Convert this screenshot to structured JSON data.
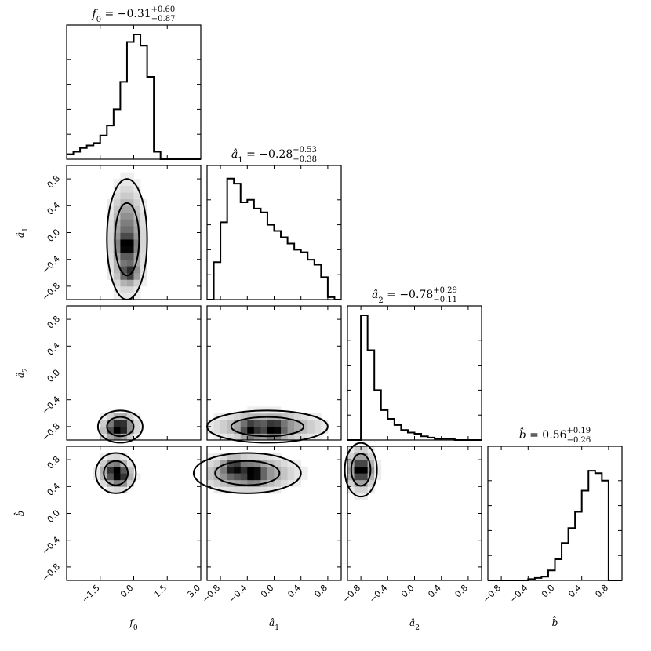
{
  "chart_data": {
    "type": "corner",
    "parameters": [
      {
        "id": "f0",
        "label": "f₀",
        "title": "f₀ = −0.31⁺⁰·⁶⁰₋₀.₈₇",
        "median": -0.31,
        "err_plus": 0.6,
        "err_minus": 0.87,
        "range": [
          -3.0,
          3.0
        ],
        "ticks": [
          "−1.5",
          "0.0",
          "1.5",
          "3.0"
        ],
        "tick_values": [
          -1.5,
          0.0,
          1.5,
          3.0
        ]
      },
      {
        "id": "a1",
        "label": "â₁",
        "title": "â₁ = −0.28⁺⁰·⁵³₋₀.₃₈",
        "median": -0.28,
        "err_plus": 0.53,
        "err_minus": 0.38,
        "range": [
          -1.0,
          1.0
        ],
        "ticks": [
          "−0.8",
          "−0.4",
          "0.0",
          "0.4",
          "0.8"
        ],
        "tick_values": [
          -0.8,
          -0.4,
          0.0,
          0.4,
          0.8
        ]
      },
      {
        "id": "a2",
        "label": "â₂",
        "title": "â₂ = −0.78⁺⁰·²⁹₋₀.₁₁",
        "median": -0.78,
        "err_plus": 0.29,
        "err_minus": 0.11,
        "range": [
          -1.0,
          1.0
        ],
        "ticks": [
          "−0.8",
          "−0.4",
          "0.0",
          "0.4",
          "0.8"
        ],
        "tick_values": [
          -0.8,
          -0.4,
          0.0,
          0.4,
          0.8
        ]
      },
      {
        "id": "b",
        "label": "b̂",
        "title": "b̂ = 0.56⁺⁰·¹⁹₋₀.²⁶",
        "median": 0.56,
        "err_plus": 0.19,
        "err_minus": 0.26,
        "range": [
          -1.0,
          1.0
        ],
        "ticks": [
          "−0.8",
          "−0.4",
          "0.0",
          "0.4",
          "0.8"
        ],
        "tick_values": [
          -0.8,
          -0.4,
          0.0,
          0.4,
          0.8
        ]
      }
    ],
    "title_parts": [
      {
        "lhs": "f",
        "sub": "0",
        "hat": false,
        "value": "−0.31",
        "plus": "+0.60",
        "minus": "−0.87"
      },
      {
        "lhs": "a",
        "sub": "1",
        "hat": true,
        "value": "−0.28",
        "plus": "+0.53",
        "minus": "−0.38"
      },
      {
        "lhs": "a",
        "sub": "2",
        "hat": true,
        "value": "−0.78",
        "plus": "+0.29",
        "minus": "−0.11"
      },
      {
        "lhs": "b",
        "sub": "",
        "hat": true,
        "value": "0.56",
        "plus": "+0.19",
        "minus": "−0.26"
      }
    ],
    "axis_labels": [
      {
        "base": "f",
        "sub": "0",
        "hat": false
      },
      {
        "base": "a",
        "sub": "1",
        "hat": true
      },
      {
        "base": "a",
        "sub": "2",
        "hat": true
      },
      {
        "base": "b",
        "sub": "",
        "hat": true
      }
    ],
    "histograms": {
      "f0": [
        0.04,
        0.06,
        0.09,
        0.11,
        0.13,
        0.19,
        0.27,
        0.4,
        0.62,
        0.94,
        1.0,
        0.91,
        0.66,
        0.06,
        0.0,
        0.0,
        0.0,
        0.0,
        0.0,
        0.0
      ],
      "a1": [
        0.0,
        0.3,
        0.62,
        0.97,
        0.93,
        0.78,
        0.8,
        0.73,
        0.7,
        0.6,
        0.55,
        0.5,
        0.45,
        0.4,
        0.38,
        0.32,
        0.28,
        0.18,
        0.02,
        0.0
      ],
      "a2": [
        0.0,
        0.0,
        1.0,
        0.72,
        0.4,
        0.24,
        0.17,
        0.12,
        0.08,
        0.06,
        0.05,
        0.03,
        0.02,
        0.01,
        0.01,
        0.01,
        0.0,
        0.0,
        0.0,
        0.0
      ],
      "b": [
        0.0,
        0.0,
        0.0,
        0.0,
        0.0,
        0.0,
        0.01,
        0.02,
        0.03,
        0.08,
        0.17,
        0.3,
        0.42,
        0.55,
        0.72,
        0.88,
        0.86,
        0.8,
        0.0,
        0.0
      ]
    },
    "density_peaks": [
      {
        "x": "f0",
        "y": "a1",
        "center": [
          -0.3,
          -0.1
        ],
        "sigma": [
          0.45,
          0.45
        ],
        "hot": [
          [
            -0.2,
            -0.6
          ],
          [
            -0.3,
            -0.2
          ]
        ]
      },
      {
        "x": "f0",
        "y": "a2",
        "center": [
          -0.6,
          -0.8
        ],
        "sigma": [
          0.5,
          0.12
        ],
        "hot": [
          [
            -0.9,
            -0.85
          ],
          [
            -0.5,
            -0.8
          ]
        ]
      },
      {
        "x": "a1",
        "y": "a2",
        "center": [
          -0.1,
          -0.8
        ],
        "sigma": [
          0.45,
          0.12
        ],
        "hot": [
          [
            -0.35,
            -0.85
          ],
          [
            0.0,
            -0.85
          ]
        ]
      },
      {
        "x": "f0",
        "y": "b",
        "center": [
          -0.8,
          0.6
        ],
        "sigma": [
          0.45,
          0.15
        ],
        "hot": [
          [
            -0.9,
            0.65
          ],
          [
            -0.55,
            0.55
          ]
        ]
      },
      {
        "x": "a1",
        "y": "b",
        "center": [
          -0.4,
          0.6
        ],
        "sigma": [
          0.4,
          0.15
        ],
        "hot": [
          [
            -0.6,
            0.7
          ],
          [
            -0.3,
            0.6
          ]
        ]
      },
      {
        "x": "a2",
        "y": "b",
        "center": [
          -0.8,
          0.65
        ],
        "sigma": [
          0.12,
          0.2
        ],
        "hot": [
          [
            -0.8,
            0.65
          ]
        ]
      }
    ],
    "grid": false,
    "legend": "none"
  }
}
